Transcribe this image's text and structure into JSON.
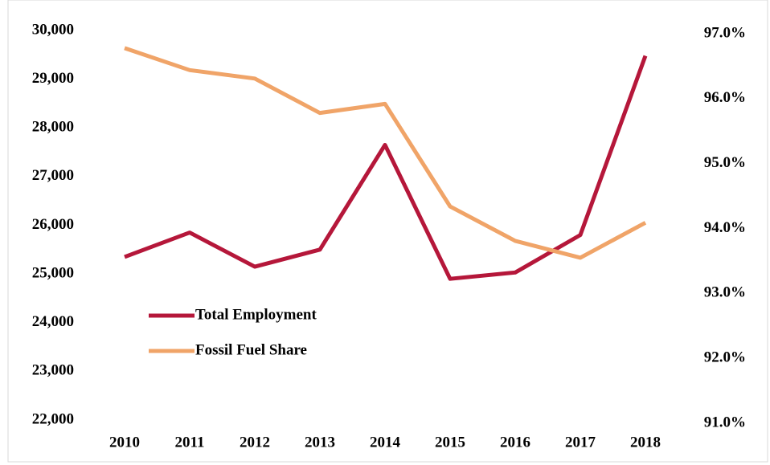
{
  "chart_data": {
    "type": "line",
    "categories": [
      "2010",
      "2011",
      "2012",
      "2013",
      "2014",
      "2015",
      "2016",
      "2017",
      "2018"
    ],
    "series": [
      {
        "name": "Total Employment",
        "color": "#b5173a",
        "values": [
          25350,
          25850,
          25150,
          25500,
          27650,
          24900,
          25030,
          25800,
          29480
        ]
      },
      {
        "name": "Fossil Fuel Share",
        "color": "#f0a468",
        "axis": "y2",
        "values": [
          96.73,
          96.39,
          96.26,
          95.73,
          95.87,
          94.29,
          93.76,
          93.5,
          94.04
        ]
      }
    ],
    "ylim": [
      22000,
      30000
    ],
    "yticks": [
      {
        "value": 22000,
        "label": "22,000"
      },
      {
        "value": 23000,
        "label": "23,000"
      },
      {
        "value": 24000,
        "label": "24,000"
      },
      {
        "value": 25000,
        "label": "25,000"
      },
      {
        "value": 26000,
        "label": "26,000"
      },
      {
        "value": 27000,
        "label": "27,000"
      },
      {
        "value": 28000,
        "label": "28,000"
      },
      {
        "value": 29000,
        "label": "29,000"
      },
      {
        "value": 30000,
        "label": "30,000"
      }
    ],
    "y2lim": [
      91,
      97
    ],
    "y2ticks": [
      {
        "value": 91,
        "label": "91.0%"
      },
      {
        "value": 92,
        "label": "92.0%"
      },
      {
        "value": 93,
        "label": "93.0%"
      },
      {
        "value": 94,
        "label": "94.0%"
      },
      {
        "value": 95,
        "label": "95.0%"
      },
      {
        "value": 96,
        "label": "96.0%"
      },
      {
        "value": 97,
        "label": "97.0%"
      }
    ],
    "grid": false,
    "legend": "left"
  }
}
